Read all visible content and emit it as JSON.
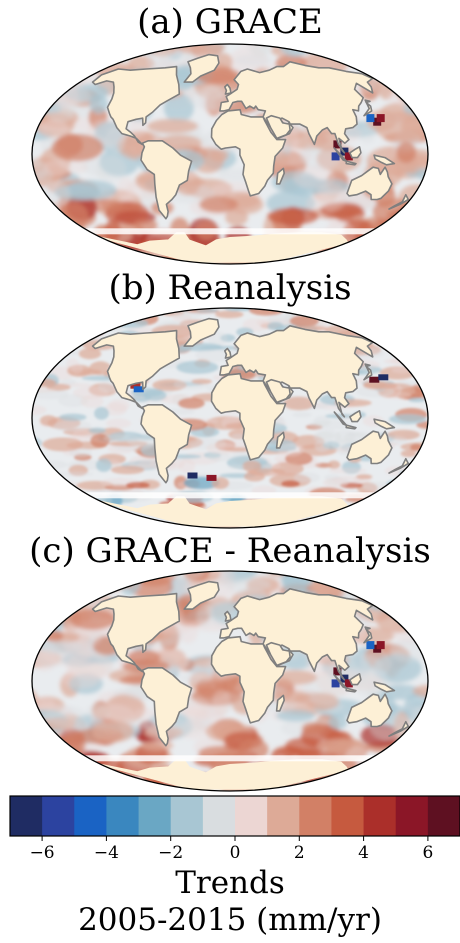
{
  "panels": [
    {
      "title": "(a) GRACE"
    },
    {
      "title": "(b) Reanalysis"
    },
    {
      "title": "(c) GRACE - Reanalysis"
    }
  ],
  "colorbar": {
    "ticks": [
      "−6",
      "−4",
      "−2",
      "0",
      "2",
      "4",
      "6"
    ],
    "range": [
      -7,
      7
    ],
    "label_line1": "Trends",
    "label_line2": "2005-2015 (mm/yr)",
    "colors": [
      "#1f2c63",
      "#2c43a0",
      "#1a63c4",
      "#3a87bf",
      "#6aa7c4",
      "#a8c6d3",
      "#d9dde0",
      "#ecd6d3",
      "#ddaa97",
      "#d28066",
      "#c65a3f",
      "#ab2f2a",
      "#8b1627",
      "#5e1021"
    ]
  },
  "colors": {
    "land": "#fdf0d6",
    "coast": "#7f7f7f",
    "ocean_neutral": "#e9ecef"
  }
}
